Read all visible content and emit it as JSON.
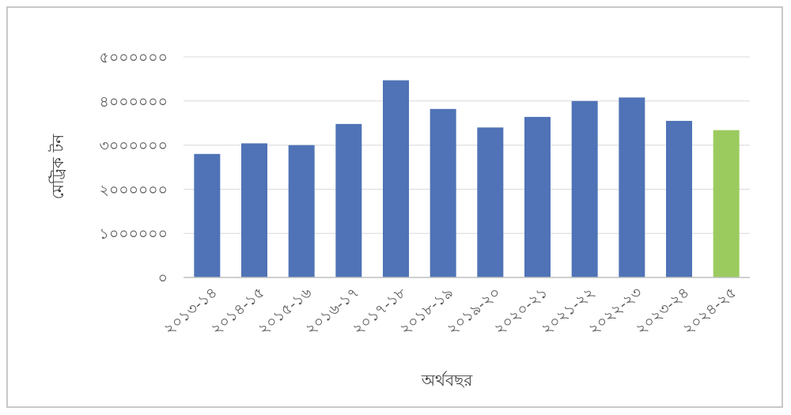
{
  "chart_data": {
    "type": "bar",
    "title": "",
    "xlabel": "অর্থবছর",
    "ylabel": "মেট্রিক টন",
    "ylim": [
      0,
      5000000
    ],
    "y_ticks": [
      {
        "value": 0,
        "label": "০"
      },
      {
        "value": 1000000,
        "label": "১০০০০০০"
      },
      {
        "value": 2000000,
        "label": "২০০০০০০"
      },
      {
        "value": 3000000,
        "label": "৩০০০০০০"
      },
      {
        "value": 4000000,
        "label": "৪০০০০০০"
      },
      {
        "value": 5000000,
        "label": "৫০০০০০০"
      }
    ],
    "categories": [
      "২০১৩-১৪",
      "২০১৪-১৫",
      "২০১৫-১৬",
      "২০১৬-১৭",
      "২০১৭-১৮",
      "২০১৮-১৯",
      "২০১৯-২০",
      "২০২০-২১",
      "২০২১-২২",
      "২০২২-২৩",
      "২০২৩-২৪",
      "২০২৪-২৫"
    ],
    "values": [
      2800000,
      3040000,
      3000000,
      3480000,
      4470000,
      3820000,
      3400000,
      3640000,
      4000000,
      4080000,
      3550000,
      3340000
    ],
    "colors": [
      "#4f73b6",
      "#4f73b6",
      "#4f73b6",
      "#4f73b6",
      "#4f73b6",
      "#4f73b6",
      "#4f73b6",
      "#4f73b6",
      "#4f73b6",
      "#4f73b6",
      "#4f73b6",
      "#9bcb5f"
    ],
    "gridlines": true,
    "gridline_color": "#d9d9d9",
    "legend": "none"
  }
}
